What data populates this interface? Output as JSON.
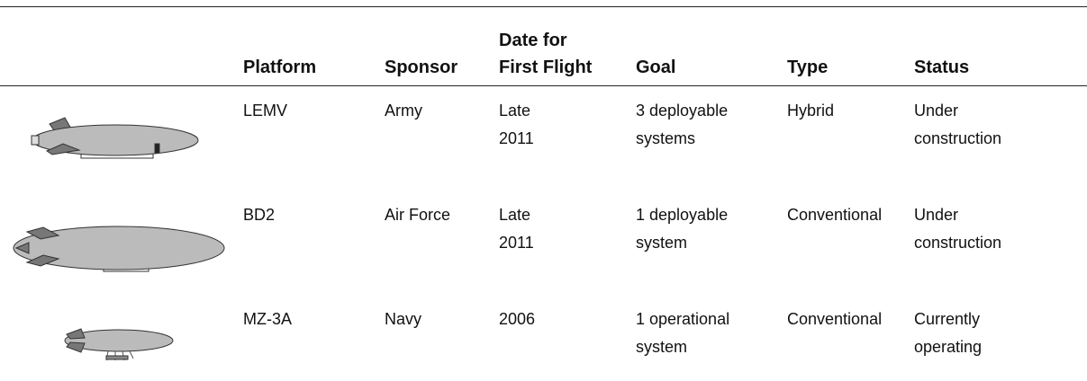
{
  "table": {
    "header": [
      [
        "Platform"
      ],
      [
        "Sponsor"
      ],
      [
        "Date for",
        "First Flight"
      ],
      [
        "Goal"
      ],
      [
        "Type"
      ],
      [
        "Status"
      ]
    ],
    "rows": [
      [
        [
          "LEMV"
        ],
        [
          "Army"
        ],
        [
          "Late",
          "2011"
        ],
        [
          "3 deployable",
          "systems"
        ],
        [
          "Hybrid"
        ],
        [
          "Under",
          "construction"
        ]
      ],
      [
        [
          "BD2"
        ],
        [
          "Air Force"
        ],
        [
          "Late",
          "2011"
        ],
        [
          "1 deployable",
          "system"
        ],
        [
          "Conventional"
        ],
        [
          "Under",
          "construction"
        ]
      ],
      [
        [
          "MZ-3A"
        ],
        [
          "Navy"
        ],
        [
          "2006"
        ],
        [
          "1 operational",
          "system"
        ],
        [
          "Conventional"
        ],
        [
          "Currently",
          "operating"
        ]
      ]
    ]
  }
}
